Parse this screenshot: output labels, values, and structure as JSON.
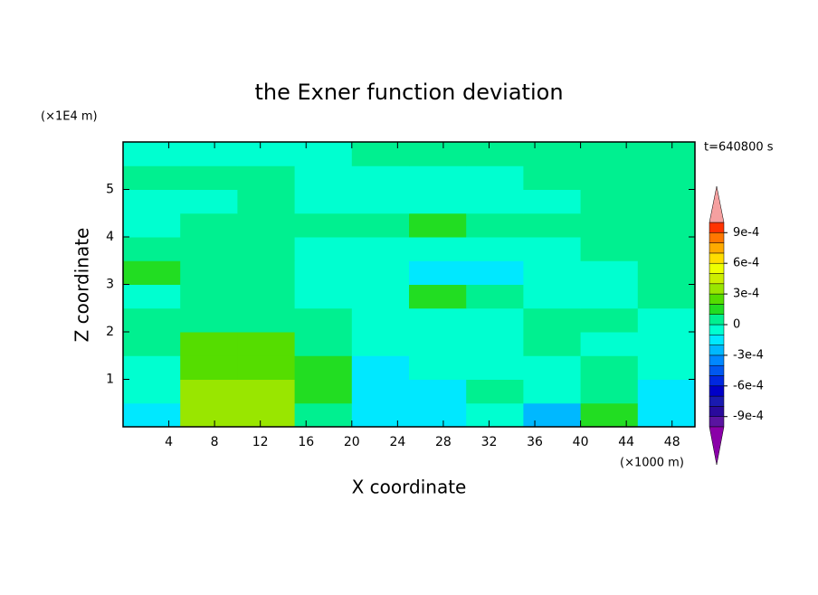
{
  "chart_data": {
    "type": "contour",
    "title": "the Exner function deviation",
    "y_unit": "(×1E4 m)",
    "x_unit": "(×1000 m)",
    "annotation": "t=640800 s",
    "xlabel": "X coordinate",
    "ylabel": "Z coordinate",
    "xlim": [
      0,
      50
    ],
    "xticks": [
      4,
      8,
      12,
      16,
      20,
      24,
      28,
      32,
      36,
      40,
      44,
      48
    ],
    "ylim": [
      0,
      6
    ],
    "yticks": [
      1,
      2,
      3,
      4,
      5
    ],
    "xbins": [
      0,
      5,
      10,
      15,
      20,
      25,
      30,
      35,
      40,
      45,
      50
    ],
    "ybins": [
      0,
      0.5,
      1,
      1.5,
      2,
      2.5,
      3,
      3.5,
      4,
      4.5,
      5,
      5.5,
      6
    ],
    "z": [
      [
        -0.00015,
        0.00035,
        0.00035,
        5e-05,
        -0.00015,
        -0.00015,
        -5e-05,
        -0.00025,
        0.00015,
        -0.00015
      ],
      [
        -5e-05,
        0.00035,
        0.00035,
        0.00015,
        -0.00015,
        -0.00015,
        5e-05,
        -5e-05,
        5e-05,
        -0.00015
      ],
      [
        -5e-05,
        0.00025,
        0.00025,
        0.00015,
        -0.00015,
        -5e-05,
        -5e-05,
        -5e-05,
        5e-05,
        -5e-05
      ],
      [
        5e-05,
        0.00025,
        0.00025,
        5e-05,
        -5e-05,
        -5e-05,
        -5e-05,
        5e-05,
        -5e-05,
        -5e-05
      ],
      [
        5e-05,
        5e-05,
        5e-05,
        5e-05,
        -5e-05,
        -5e-05,
        -5e-05,
        5e-05,
        5e-05,
        -5e-05
      ],
      [
        -5e-05,
        5e-05,
        5e-05,
        -5e-05,
        -5e-05,
        0.00015,
        5e-05,
        -5e-05,
        -5e-05,
        5e-05
      ],
      [
        0.00015,
        5e-05,
        5e-05,
        -5e-05,
        -5e-05,
        -0.00015,
        -0.00015,
        -5e-05,
        -5e-05,
        5e-05
      ],
      [
        5e-05,
        5e-05,
        5e-05,
        -5e-05,
        -5e-05,
        -5e-05,
        -5e-05,
        -5e-05,
        5e-05,
        5e-05
      ],
      [
        -5e-05,
        5e-05,
        5e-05,
        5e-05,
        5e-05,
        0.00015,
        5e-05,
        5e-05,
        5e-05,
        5e-05
      ],
      [
        -5e-05,
        -5e-05,
        5e-05,
        -5e-05,
        -5e-05,
        -5e-05,
        -5e-05,
        -5e-05,
        5e-05,
        5e-05
      ],
      [
        5e-05,
        5e-05,
        5e-05,
        -5e-05,
        -5e-05,
        -5e-05,
        -5e-05,
        5e-05,
        5e-05,
        5e-05
      ],
      [
        -5e-05,
        -5e-05,
        -5e-05,
        -5e-05,
        5e-05,
        5e-05,
        5e-05,
        5e-05,
        5e-05,
        5e-05
      ]
    ],
    "levels": [
      -0.001,
      -0.0009,
      -0.0008,
      -0.0007,
      -0.0006,
      -0.0005,
      -0.0004,
      -0.0003,
      -0.0002,
      -0.0001,
      0,
      0.0001,
      0.0002,
      0.0003,
      0.0004,
      0.0005,
      0.0006,
      0.0007,
      0.0008,
      0.0009,
      0.001
    ],
    "colors": [
      "#5a14a0",
      "#2a0a9c",
      "#1a1ab0",
      "#0000c8",
      "#0028e0",
      "#0058f0",
      "#0088ff",
      "#00b8ff",
      "#00e8ff",
      "#00ffd0",
      "#00f090",
      "#22dd22",
      "#55dd00",
      "#99e600",
      "#ccee00",
      "#eeff00",
      "#ffdd00",
      "#ffaa00",
      "#ff7700",
      "#ff3300"
    ],
    "extend_colors": [
      "#8a00a8",
      "#f5a0a0"
    ],
    "cbar_ticks": [
      {
        "value": -0.0009,
        "label": "-9e-4"
      },
      {
        "value": -0.0006,
        "label": "-6e-4"
      },
      {
        "value": -0.0003,
        "label": "-3e-4"
      },
      0,
      {
        "value": 0.0003,
        "label": "3e-4"
      },
      {
        "value": 0.0006,
        "label": "6e-4"
      },
      {
        "value": 0.0009,
        "label": "9e-4"
      }
    ]
  }
}
